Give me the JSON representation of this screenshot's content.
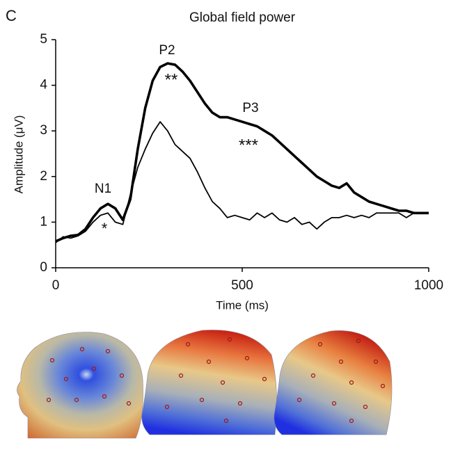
{
  "chart_data": {
    "type": "line",
    "panel_label": "C",
    "title": "Global field power",
    "x_label": "Time (ms)",
    "y_label": "Amplitude (μV)",
    "x": [
      0,
      20,
      40,
      60,
      80,
      100,
      120,
      140,
      160,
      180,
      200,
      220,
      240,
      260,
      280,
      300,
      320,
      340,
      360,
      380,
      400,
      420,
      440,
      460,
      480,
      500,
      520,
      540,
      560,
      580,
      600,
      620,
      640,
      660,
      680,
      700,
      720,
      740,
      760,
      780,
      800,
      820,
      840,
      860,
      880,
      900,
      920,
      940,
      960,
      980,
      1000
    ],
    "series": [
      {
        "color": "#000000",
        "values": [
          0.58,
          0.65,
          0.7,
          0.72,
          0.85,
          1.1,
          1.3,
          1.4,
          1.3,
          1.05,
          1.5,
          2.6,
          3.5,
          4.1,
          4.4,
          4.48,
          4.45,
          4.3,
          4.1,
          3.85,
          3.6,
          3.4,
          3.3,
          3.3,
          3.25,
          3.2,
          3.15,
          3.1,
          3.0,
          2.9,
          2.75,
          2.6,
          2.45,
          2.3,
          2.15,
          2.0,
          1.9,
          1.8,
          1.75,
          1.85,
          1.65,
          1.55,
          1.45,
          1.4,
          1.35,
          1.3,
          1.25,
          1.25,
          1.2,
          1.2,
          1.2
        ]
      },
      {
        "color": "#000000",
        "values": [
          0.55,
          0.68,
          0.65,
          0.7,
          0.8,
          1.0,
          1.15,
          1.2,
          1.0,
          0.95,
          1.6,
          2.2,
          2.6,
          2.95,
          3.2,
          3.0,
          2.7,
          2.55,
          2.4,
          2.1,
          1.75,
          1.45,
          1.3,
          1.1,
          1.15,
          1.1,
          1.05,
          1.2,
          1.1,
          1.2,
          1.05,
          1.0,
          1.1,
          0.95,
          1.0,
          0.85,
          1.0,
          1.1,
          1.1,
          1.15,
          1.1,
          1.15,
          1.1,
          1.2,
          1.2,
          1.2,
          1.2,
          1.1,
          1.2,
          1.2,
          1.2
        ]
      }
    ],
    "annotations": [
      "N1",
      "*",
      "P2",
      "**",
      "P3",
      "***"
    ],
    "xlim": [
      0,
      1000
    ],
    "xticks": [
      0,
      500,
      1000
    ],
    "ylim": [
      0,
      5
    ],
    "yticks": [
      0,
      1,
      2,
      3,
      4,
      5
    ],
    "grid": false
  }
}
